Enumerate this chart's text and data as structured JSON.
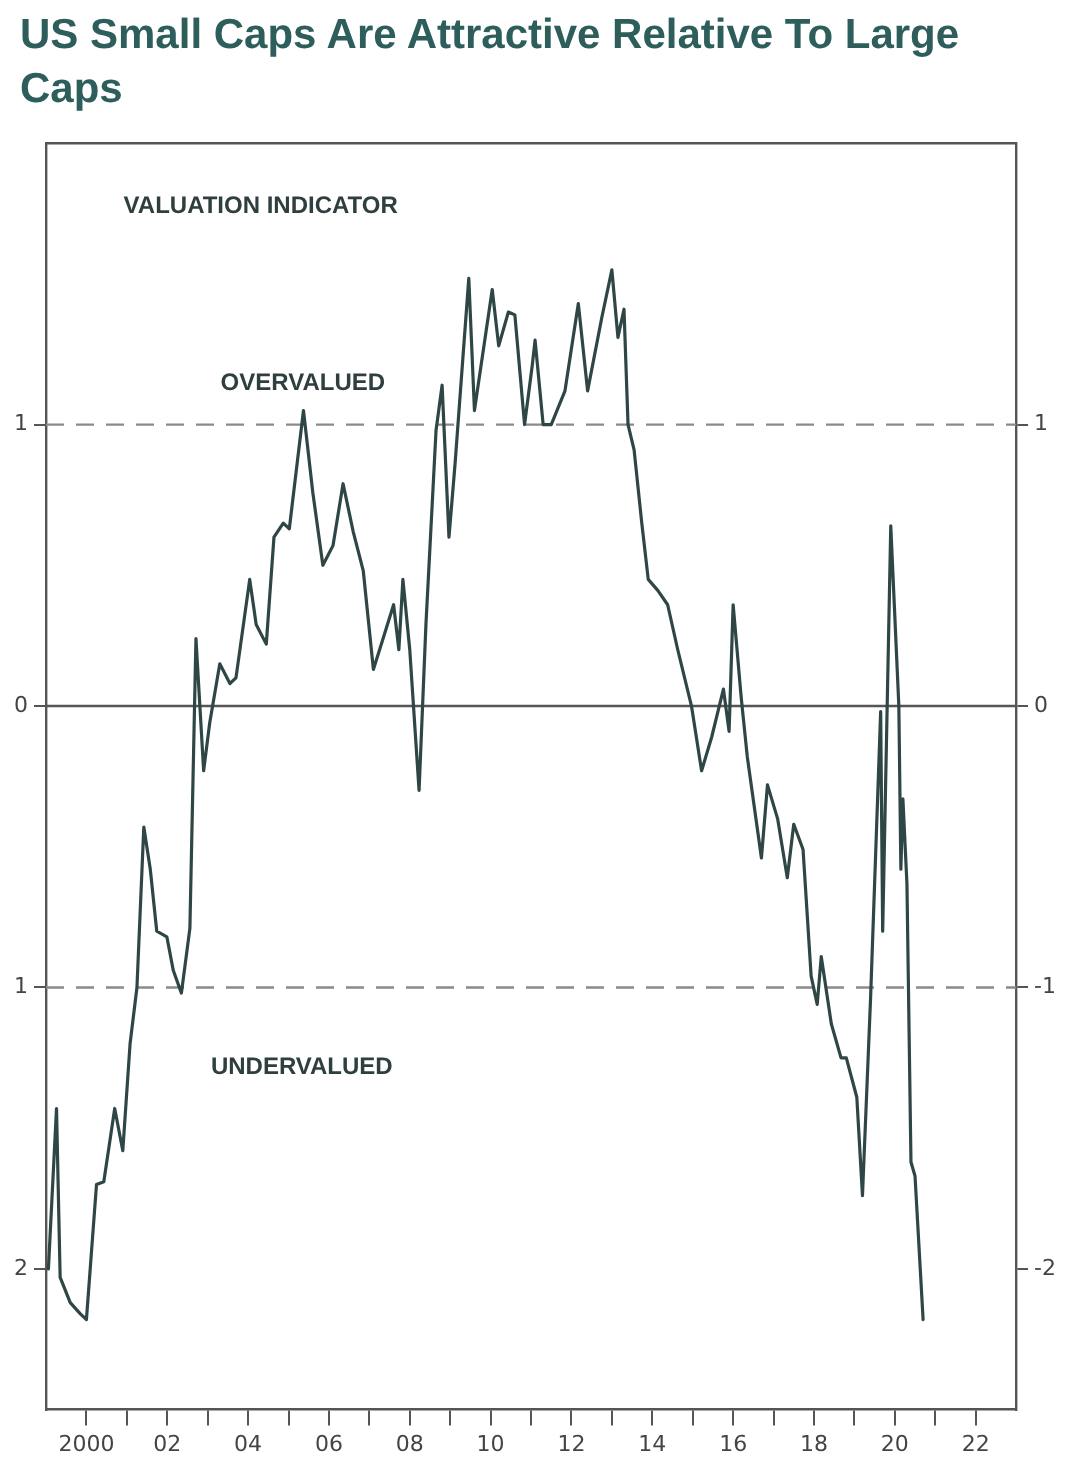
{
  "chart_data": {
    "type": "line",
    "title": "US Small Caps Are Attractive Relative To Large Caps",
    "annotations": [
      "VALUATION INDICATOR",
      "OVERVALUED",
      "UNDERVALUED"
    ],
    "x": [
      1999.06,
      1999.26,
      1999.35,
      1999.6,
      1999.85,
      2000.0,
      2000.25,
      2000.43,
      2000.7,
      2000.9,
      2001.08,
      2001.25,
      2001.42,
      2001.58,
      2001.74,
      2001.99,
      2002.15,
      2002.35,
      2002.56,
      2002.71,
      2002.9,
      2003.05,
      2003.3,
      2003.55,
      2003.7,
      2004.04,
      2004.2,
      2004.45,
      2004.64,
      2004.87,
      2005.02,
      2005.37,
      2005.6,
      2005.85,
      2006.1,
      2006.35,
      2006.6,
      2006.85,
      2007.1,
      2007.34,
      2007.6,
      2007.73,
      2007.83,
      2008.0,
      2008.23,
      2008.4,
      2008.65,
      2008.8,
      2008.97,
      2009.12,
      2009.3,
      2009.46,
      2009.6,
      2010.04,
      2010.2,
      2010.44,
      2010.6,
      2010.84,
      2011.03,
      2011.1,
      2011.3,
      2011.5,
      2011.84,
      2012.17,
      2012.4,
      2012.75,
      2013.0,
      2013.15,
      2013.3,
      2013.4,
      2013.55,
      2013.74,
      2013.9,
      2014.14,
      2014.38,
      2014.63,
      2014.97,
      2015.22,
      2015.47,
      2015.76,
      2015.9,
      2016.0,
      2016.2,
      2016.35,
      2016.7,
      2016.85,
      2017.1,
      2017.34,
      2017.5,
      2017.73,
      2017.93,
      2018.08,
      2018.18,
      2018.43,
      2018.67,
      2018.8,
      2019.06,
      2019.2,
      2019.4,
      2019.65,
      2019.7,
      2019.9,
      2020.1,
      2020.15,
      2020.2,
      2020.3,
      2020.4,
      2020.5,
      2020.7
    ],
    "series": [
      {
        "color": "#2f4646",
        "values": [
          -2.0,
          -1.43,
          -2.03,
          -2.12,
          -2.16,
          -2.18,
          -1.7,
          -1.69,
          -1.43,
          -1.58,
          -1.2,
          -1.0,
          -0.43,
          -0.58,
          -0.8,
          -0.82,
          -0.94,
          -1.02,
          -0.79,
          0.24,
          -0.23,
          -0.06,
          0.15,
          0.08,
          0.1,
          0.45,
          0.29,
          0.22,
          0.6,
          0.65,
          0.63,
          1.05,
          0.76,
          0.5,
          0.57,
          0.79,
          0.62,
          0.48,
          0.13,
          0.24,
          0.36,
          0.2,
          0.45,
          0.2,
          -0.3,
          0.29,
          0.98,
          1.14,
          0.6,
          0.86,
          1.21,
          1.52,
          1.05,
          1.48,
          1.28,
          1.4,
          1.39,
          1.0,
          1.21,
          1.3,
          1.0,
          1.0,
          1.12,
          1.43,
          1.12,
          1.38,
          1.55,
          1.31,
          1.41,
          1.0,
          0.91,
          0.65,
          0.45,
          0.41,
          0.36,
          0.2,
          0.0,
          -0.23,
          -0.11,
          0.06,
          -0.09,
          0.36,
          0.03,
          -0.18,
          -0.54,
          -0.28,
          -0.4,
          -0.61,
          -0.42,
          -0.51,
          -0.96,
          -1.06,
          -0.89,
          -1.13,
          -1.25,
          -1.25,
          -1.39,
          -1.74,
          -1.04,
          -0.02,
          -0.8,
          0.64,
          0.0,
          -0.58,
          -0.33,
          -0.63,
          -1.62,
          -1.67,
          -2.18
        ]
      }
    ],
    "xlim": [
      1999,
      2023
    ],
    "xticks": [
      {
        "value": 2000,
        "label": "2000"
      },
      {
        "value": 2001,
        "label": null
      },
      {
        "value": 2002,
        "label": "02"
      },
      {
        "value": 2003,
        "label": null
      },
      {
        "value": 2004,
        "label": "04"
      },
      {
        "value": 2005,
        "label": null
      },
      {
        "value": 2006,
        "label": "06"
      },
      {
        "value": 2007,
        "label": null
      },
      {
        "value": 2008,
        "label": "08"
      },
      {
        "value": 2009,
        "label": null
      },
      {
        "value": 2010,
        "label": "10"
      },
      {
        "value": 2011,
        "label": null
      },
      {
        "value": 2012,
        "label": "12"
      },
      {
        "value": 2013,
        "label": null
      },
      {
        "value": 2014,
        "label": "14"
      },
      {
        "value": 2015,
        "label": null
      },
      {
        "value": 2016,
        "label": "16"
      },
      {
        "value": 2017,
        "label": null
      },
      {
        "value": 2018,
        "label": "18"
      },
      {
        "value": 2019,
        "label": null
      },
      {
        "value": 2020,
        "label": "20"
      },
      {
        "value": 2021,
        "label": null
      },
      {
        "value": 2022,
        "label": "22"
      }
    ],
    "ylim": [
      -2.5,
      2
    ],
    "yticks": [
      1,
      0,
      {
        "value": -1,
        "label": "1"
      },
      {
        "value": -2,
        "label": "2"
      }
    ],
    "y2lim": [
      -2.5,
      2
    ],
    "y2ticks": [
      1,
      0,
      -1,
      -2
    ],
    "ref_lines": [
      {
        "axis": "y",
        "value": 1,
        "color": "#8a8a8a",
        "line_style": "dashed"
      },
      {
        "axis": "y",
        "value": 0,
        "color": "#555555",
        "line_style": "solid"
      },
      {
        "axis": "y",
        "value": -1,
        "color": "#8a8a8a",
        "line_style": "dashed"
      }
    ],
    "marker": "none",
    "line_style": "solid",
    "legend": false
  }
}
